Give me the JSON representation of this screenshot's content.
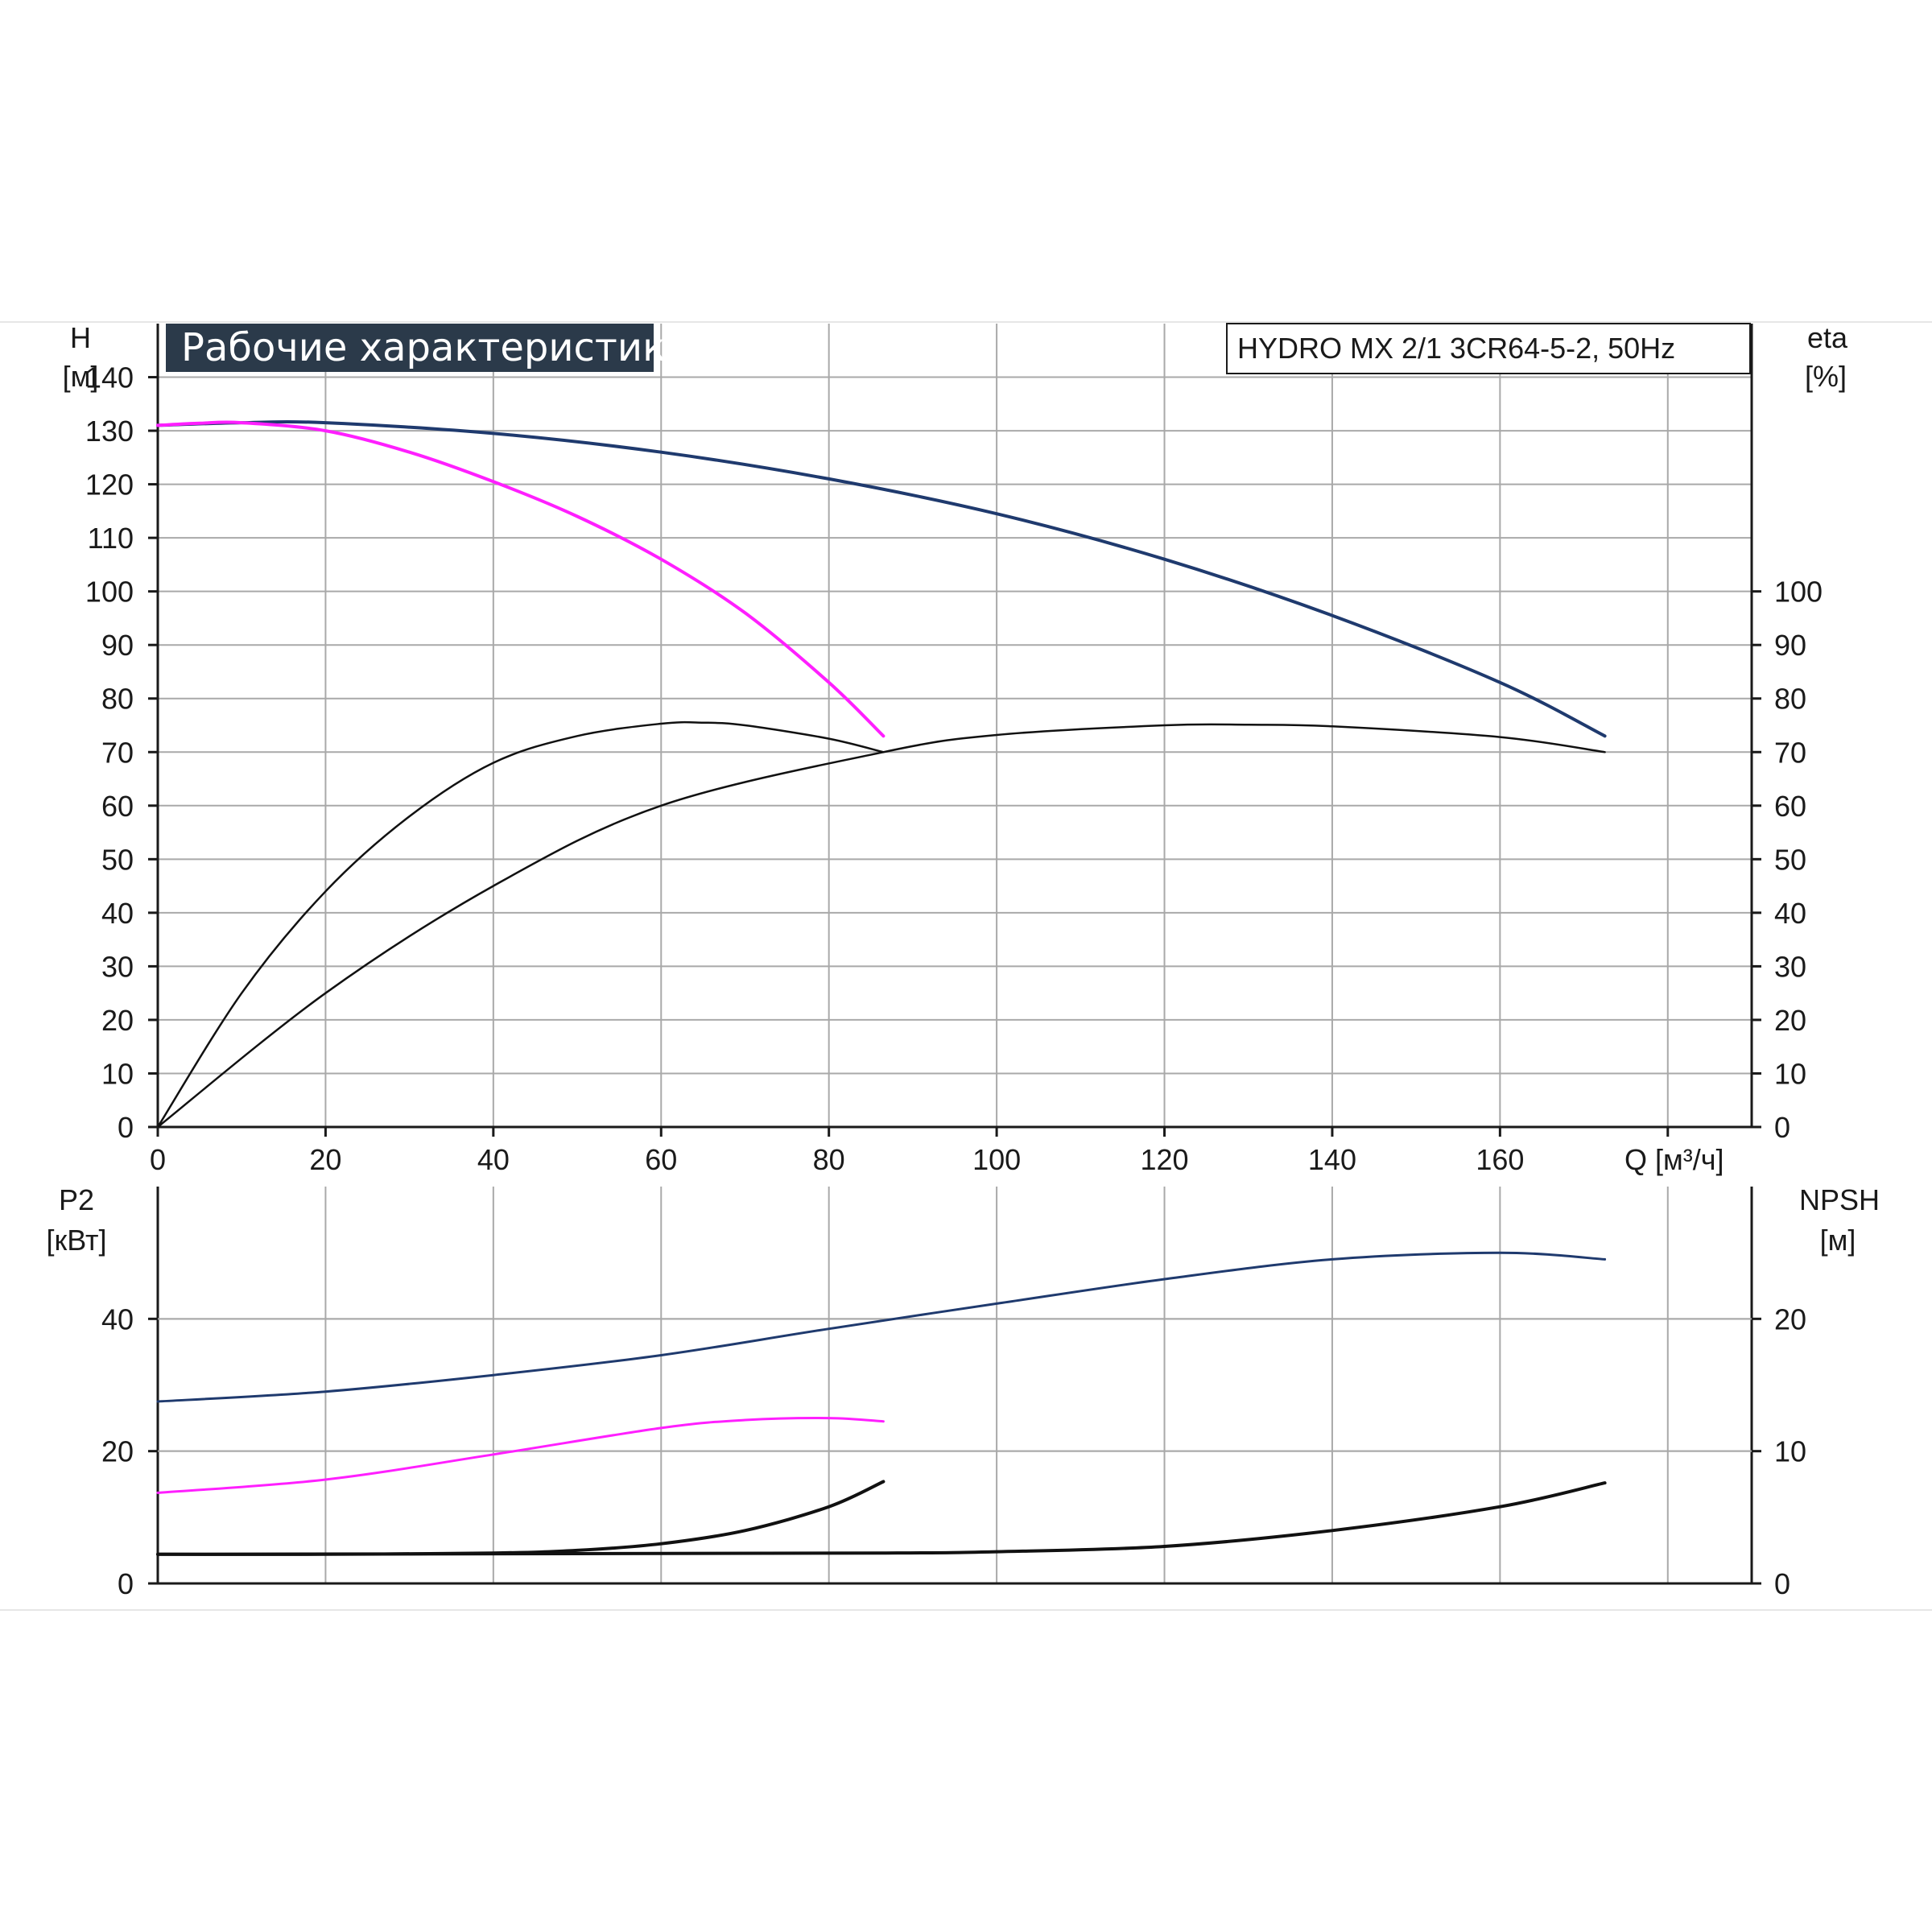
{
  "chart_data": [
    {
      "type": "line",
      "title": "Рабочие характеристики",
      "model": "HYDRO MX 2/1 3CR64-5-2, 50Hz",
      "xlabel": "Q [м³/ч]",
      "xlim": [
        0,
        190
      ],
      "xticks": [
        0,
        20,
        40,
        60,
        80,
        100,
        120,
        140,
        160
      ],
      "ylabel_left": [
        "H",
        "[м]"
      ],
      "ylabel_right": [
        "eta",
        "[%]"
      ],
      "ylim": [
        0,
        150
      ],
      "yticks_left": [
        0,
        10,
        20,
        30,
        40,
        50,
        60,
        70,
        80,
        90,
        100,
        110,
        120,
        130,
        140
      ],
      "yticks_right": [
        0,
        10,
        20,
        30,
        40,
        50,
        60,
        70,
        80,
        90,
        100
      ],
      "grid": true,
      "colors": {
        "navy": "#1f3a6e",
        "magenta": "#ff1fff",
        "black": "#111111",
        "grid": "#a9a9a9",
        "title_bg": "#2b3a4a"
      },
      "series": [
        {
          "axis": "left",
          "color": "navy",
          "width": 4,
          "x": [
            0,
            10,
            20,
            40,
            60,
            80,
            100,
            120,
            140,
            160,
            172.5
          ],
          "y": [
            131,
            131.5,
            131.5,
            129.5,
            126,
            121,
            114.5,
            106,
            95.5,
            83,
            73
          ]
        },
        {
          "axis": "left",
          "color": "magenta",
          "width": 4,
          "x": [
            0,
            5,
            10,
            20,
            30,
            40,
            50,
            60,
            70,
            80,
            86.5
          ],
          "y": [
            131,
            131.4,
            131.5,
            130,
            126,
            120.5,
            114,
            106,
            96,
            83,
            73
          ]
        },
        {
          "axis": "right",
          "color": "black",
          "width": 2.5,
          "x": [
            0,
            10,
            20,
            30,
            40,
            50,
            60,
            65,
            70,
            80,
            86.5
          ],
          "y": [
            0,
            25,
            44,
            58,
            68,
            73,
            75.3,
            75.5,
            75,
            72.5,
            70
          ]
        },
        {
          "axis": "right",
          "color": "black",
          "width": 2.5,
          "x": [
            0,
            20,
            40,
            60,
            86.5,
            100,
            120,
            130,
            140,
            160,
            172.5
          ],
          "y": [
            0,
            25,
            45,
            60,
            70,
            73.2,
            75,
            75.1,
            74.8,
            72.8,
            70
          ]
        }
      ]
    },
    {
      "type": "line",
      "xlim": [
        0,
        190
      ],
      "ylabel_left": [
        "P2",
        "[кВт]"
      ],
      "ylabel_right": [
        "NPSH",
        "[м]"
      ],
      "ylim": [
        0,
        60
      ],
      "yticks_left": [
        0,
        20,
        40
      ],
      "yticks_right": [
        0,
        10,
        20
      ],
      "grid": true,
      "series": [
        {
          "axis": "left",
          "color": "navy",
          "width": 3,
          "x": [
            0,
            20,
            40,
            60,
            80,
            100,
            120,
            140,
            160,
            172.5
          ],
          "y": [
            27.5,
            29,
            31.5,
            34.5,
            38.5,
            42.3,
            46,
            49,
            50,
            49
          ]
        },
        {
          "axis": "left",
          "color": "magenta",
          "width": 3,
          "x": [
            0,
            20,
            40,
            60,
            70,
            80,
            86.5
          ],
          "y": [
            13.7,
            15.7,
            19.5,
            23.5,
            24.7,
            25,
            24.5
          ]
        },
        {
          "axis": "right",
          "color": "black",
          "width": 4,
          "x": [
            0,
            20,
            40,
            50,
            60,
            70,
            80,
            86.5
          ],
          "y": [
            2.2,
            2.2,
            2.3,
            2.5,
            3,
            4,
            5.8,
            7.7
          ]
        },
        {
          "axis": "right",
          "color": "black",
          "width": 4,
          "x": [
            0,
            50,
            86.5,
            100,
            120,
            140,
            160,
            172.5
          ],
          "y": [
            2.2,
            2.25,
            2.3,
            2.4,
            2.8,
            4,
            5.8,
            7.6
          ]
        }
      ]
    }
  ]
}
